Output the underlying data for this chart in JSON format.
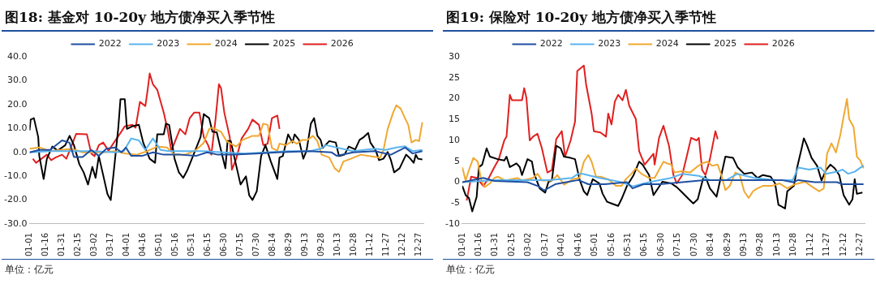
{
  "chart_data": [
    {
      "type": "line",
      "title": "图18: 基金对 10-20y 地方债净买入季节性",
      "annotations": [
        "单位：亿元"
      ],
      "legend": "top",
      "marker": "none",
      "line_style": "solid",
      "grid": false,
      "xlim": [
        "--01-01",
        "--12-31"
      ],
      "xticks": [
        {
          "value": "--01-01",
          "label": "01-01"
        },
        {
          "value": "--01-16",
          "label": "01-16"
        },
        {
          "value": "--01-31",
          "label": "01-31"
        },
        {
          "value": "--02-15",
          "label": "02-15"
        },
        {
          "value": "--03-02",
          "label": "03-02"
        },
        {
          "value": "--03-17",
          "label": "03-17"
        },
        {
          "value": "--04-01",
          "label": "04-01"
        },
        {
          "value": "--04-16",
          "label": "04-16"
        },
        {
          "value": "--05-01",
          "label": "05-01"
        },
        {
          "value": "--05-16",
          "label": "05-16"
        },
        {
          "value": "--05-31",
          "label": "05-31"
        },
        {
          "value": "--06-15",
          "label": "06-15"
        },
        {
          "value": "--06-30",
          "label": "06-30"
        },
        {
          "value": "--07-15",
          "label": "07-15"
        },
        {
          "value": "--07-30",
          "label": "07-30"
        },
        {
          "value": "--08-14",
          "label": "08-14"
        },
        {
          "value": "--08-29",
          "label": "08-29"
        },
        {
          "value": "--09-13",
          "label": "09-13"
        },
        {
          "value": "--09-28",
          "label": "09-28"
        },
        {
          "value": "--10-13",
          "label": "10-13"
        },
        {
          "value": "--10-28",
          "label": "10-28"
        },
        {
          "value": "--11-12",
          "label": "11-12"
        },
        {
          "value": "--11-27",
          "label": "11-27"
        },
        {
          "value": "--12-12",
          "label": "12-12"
        },
        {
          "value": "--12-27",
          "label": "12-27"
        }
      ],
      "ylim": [
        -30,
        40
      ],
      "yticks": [
        {
          "value": -30,
          "label": "-30.0"
        },
        {
          "value": -20,
          "label": "-20.0"
        },
        {
          "value": -10,
          "label": "-10.0"
        },
        {
          "value": 0,
          "label": "0.0"
        },
        {
          "value": 10,
          "label": "10.0"
        },
        {
          "value": 20,
          "label": "20.0"
        },
        {
          "value": 30,
          "label": "30.0"
        },
        {
          "value": 40,
          "label": "40.0"
        }
      ],
      "series": [
        {
          "name": "2022",
          "color": "#1f4fa0",
          "x": [
            "--01-01",
            "--01-10",
            "--01-20",
            "--01-31",
            "--02-07",
            "--02-11",
            "--02-19",
            "--02-27",
            "--03-06",
            "--03-13",
            "--03-21",
            "--03-27",
            "--03-31",
            "--04-05",
            "--04-15",
            "--04-25",
            "--05-05",
            "--05-20",
            "--06-04",
            "--06-14",
            "--06-24",
            "--07-09",
            "--07-29",
            "--08-18",
            "--09-17",
            "--10-07",
            "--10-12",
            "--10-27",
            "--11-16",
            "--12-01",
            "--12-14",
            "--12-21",
            "--12-30"
          ],
          "values": [
            0,
            1,
            1,
            5,
            4,
            -2,
            -2,
            1,
            -1.5,
            1.5,
            2,
            0,
            2,
            -1.5,
            -1.5,
            0,
            -1,
            -1,
            -1.5,
            0,
            -1,
            -1,
            -0.5,
            0,
            0.5,
            0,
            -1.5,
            0,
            0.5,
            -1,
            2,
            -0.5,
            0.5
          ]
        },
        {
          "name": "2023",
          "color": "#5ab4f0",
          "x": [
            "--01-01",
            "--01-20",
            "--02-09",
            "--03-01",
            "--03-21",
            "--03-29",
            "--04-05",
            "--04-12",
            "--04-18",
            "--04-25",
            "--05-02",
            "--05-10",
            "--06-09",
            "--06-29",
            "--07-19",
            "--08-08",
            "--08-28",
            "--09-17",
            "--09-27",
            "--10-02",
            "--10-27",
            "--11-16",
            "--11-26",
            "--12-06",
            "--12-14",
            "--12-21",
            "--12-30"
          ],
          "values": [
            0,
            0.5,
            0.5,
            0.5,
            0,
            0.5,
            5.8,
            5,
            1,
            5.8,
            1,
            0.5,
            0.5,
            0,
            -0.5,
            0,
            0.5,
            0.5,
            1.5,
            3,
            0.5,
            1.5,
            1,
            2,
            2.5,
            0.5,
            1
          ]
        },
        {
          "name": "2024",
          "color": "#f0a830",
          "x": [
            "--01-01",
            "--01-10",
            "--01-20",
            "--01-30",
            "--02-09",
            "--02-19",
            "--03-01",
            "--03-11",
            "--03-21",
            "--03-31",
            "--04-10",
            "--04-20",
            "--04-29",
            "--05-08",
            "--05-15",
            "--05-25",
            "--06-04",
            "--06-11",
            "--06-16",
            "--06-19",
            "--06-27",
            "--07-02",
            "--07-06",
            "--07-11",
            "--07-17",
            "--07-26",
            "--08-01",
            "--08-05",
            "--08-09",
            "--08-13",
            "--08-18",
            "--08-20",
            "--08-26",
            "--09-01",
            "--09-05",
            "--09-10",
            "--09-15",
            "--09-20",
            "--09-24",
            "--09-28",
            "--10-05",
            "--10-10",
            "--10-14",
            "--10-18",
            "--10-25",
            "--11-03",
            "--11-12",
            "--11-21",
            "--11-24",
            "--11-28",
            "--12-03",
            "--12-06",
            "--12-10",
            "--12-14",
            "--12-17",
            "--12-20",
            "--12-24",
            "--12-27",
            "--12-30"
          ],
          "values": [
            1.5,
            2,
            0.5,
            1,
            1.5,
            0,
            0,
            0,
            0.5,
            -0.5,
            -1,
            0.5,
            2.4,
            2,
            -1,
            -1,
            1,
            4,
            9.8,
            10.3,
            8.6,
            4.7,
            3.6,
            2.4,
            5.2,
            6.9,
            6.9,
            12,
            11.5,
            1.8,
            0.7,
            3.6,
            3,
            4.7,
            3.6,
            5.2,
            5.2,
            6.9,
            4.7,
            -1,
            -2.2,
            -6.7,
            -8.2,
            -3.9,
            -2.7,
            -1,
            -1.6,
            -2.2,
            0.7,
            9.8,
            16.6,
            19.7,
            18.3,
            14.3,
            11.5,
            4.1,
            5.2,
            4.7,
            12.6
          ]
        },
        {
          "name": "2025",
          "color": "#000000",
          "x": [
            "--01-01",
            "--01-02",
            "--01-05",
            "--01-09",
            "--01-10",
            "--01-14",
            "--01-17",
            "--01-22",
            "--01-27",
            "--02-03",
            "--02-07",
            "--02-11",
            "--02-16",
            "--02-20",
            "--02-24",
            "--02-28",
            "--03-03",
            "--03-06",
            "--03-10",
            "--03-14",
            "--03-17",
            "--03-20",
            "--03-24",
            "--03-26",
            "--03-30",
            "--04-01",
            "--04-06",
            "--04-12",
            "--04-16",
            "--04-22",
            "--04-27",
            "--04-29",
            "--05-05",
            "--05-07",
            "--05-10",
            "--05-15",
            "--05-19",
            "--05-23",
            "--05-27",
            "--06-02",
            "--06-08",
            "--06-11",
            "--06-16",
            "--06-19",
            "--06-23",
            "--06-27",
            "--07-01",
            "--07-03",
            "--07-06",
            "--07-09",
            "--07-15",
            "--07-20",
            "--07-23",
            "--07-26",
            "--07-30",
            "--08-03",
            "--08-07",
            "--08-12",
            "--08-18",
            "--08-20",
            "--08-23",
            "--08-28",
            "--09-01",
            "--09-03",
            "--09-07",
            "--09-11",
            "--09-14",
            "--09-18",
            "--09-21",
            "--09-24",
            "--09-27",
            "--09-29",
            "--10-05",
            "--10-11",
            "--10-14",
            "--10-19",
            "--10-23",
            "--10-29",
            "--11-02",
            "--11-06",
            "--11-10",
            "--11-12",
            "--11-17",
            "--11-20",
            "--11-24",
            "--11-28",
            "--12-01",
            "--12-04",
            "--12-09",
            "--12-15",
            "--12-18",
            "--12-22",
            "--12-24",
            "--12-26",
            "--12-30"
          ],
          "values": [
            9.2,
            13.7,
            14.3,
            6.4,
            -1.6,
            -11.2,
            -2.7,
            2.4,
            0.7,
            3,
            6.9,
            3,
            -5,
            -8.4,
            -13.5,
            -6.1,
            -10.7,
            -1.6,
            -9.5,
            -17.5,
            -20,
            -7.3,
            10.3,
            22.2,
            22.2,
            9.8,
            10.9,
            11.5,
            4.1,
            -2.7,
            -4.4,
            7.5,
            7.5,
            12,
            11.5,
            -2.7,
            -8.4,
            -10.7,
            -7.3,
            -0.5,
            6.4,
            16,
            14.3,
            8.6,
            8.4,
            0.7,
            -6.7,
            4.7,
            4.7,
            -1.6,
            -13.5,
            -10.1,
            -18,
            -20,
            -16.3,
            -1.6,
            3,
            -3.9,
            -11.2,
            -2.2,
            -1.6,
            7.5,
            4.1,
            7.5,
            5.2,
            -2.7,
            0.7,
            12,
            14.3,
            6.9,
            5.2,
            1.8,
            4.7,
            4.1,
            -1.6,
            -1,
            2.4,
            1.2,
            5.2,
            6.4,
            8.1,
            4.1,
            0.7,
            -3.3,
            -2.7,
            0.1,
            -3.3,
            -8.4,
            -6.7,
            -1,
            -2.2,
            -4.4,
            -1,
            -2.7,
            -3
          ]
        },
        {
          "name": "2026",
          "color": "#e02020",
          "x": [
            "--01-04",
            "--01-07",
            "--01-12",
            "--01-17",
            "--01-21",
            "--01-25",
            "--01-31",
            "--02-04",
            "--02-08",
            "--02-13",
            "--02-23",
            "--02-27",
            "--03-02",
            "--03-06",
            "--03-10",
            "--03-15",
            "--03-20",
            "--03-26",
            "--03-30",
            "--04-06",
            "--04-09",
            "--04-13",
            "--04-18",
            "--04-20",
            "--04-22",
            "--04-25",
            "--04-29",
            "--05-05",
            "--05-09",
            "--05-12",
            "--05-16",
            "--05-20",
            "--05-25",
            "--05-29",
            "--06-02",
            "--06-07",
            "--06-11",
            "--06-15",
            "--06-18",
            "--06-22",
            "--06-25",
            "--06-27",
            "--06-30",
            "--07-05",
            "--07-07",
            "--07-11",
            "--07-16",
            "--07-22",
            "--07-26",
            "--08-01",
            "--08-05",
            "--08-09",
            "--08-13",
            "--08-18",
            "--08-20"
          ],
          "values": [
            -2.7,
            -4.4,
            -2.7,
            -1,
            -3.3,
            -2.2,
            -1,
            -2.7,
            1.8,
            7.7,
            7.5,
            -0.5,
            -1.6,
            3,
            4.1,
            0.7,
            4.1,
            8.1,
            10.9,
            11.5,
            10.3,
            21.1,
            19.4,
            25.7,
            33,
            28.5,
            26.2,
            16.6,
            8.6,
            0.7,
            5.2,
            9.8,
            7.5,
            14.3,
            16.6,
            16.6,
            6.4,
            3,
            -1,
            14.3,
            28.5,
            26.8,
            16.6,
            6.4,
            -7.3,
            -2.7,
            5.8,
            9.8,
            13.7,
            11.5,
            3,
            3.6,
            14.3,
            15.4,
            9.8
          ]
        }
      ]
    },
    {
      "type": "line",
      "title": "图19: 保险对 10-20y 地方债净买入季节性",
      "annotations": [
        "单位：亿元"
      ],
      "legend": "top",
      "marker": "none",
      "line_style": "solid",
      "grid": false,
      "xlim": [
        "--01-01",
        "--12-31"
      ],
      "xticks": [
        {
          "value": "--01-01",
          "label": "01-01"
        },
        {
          "value": "--01-16",
          "label": "01-16"
        },
        {
          "value": "--01-31",
          "label": "01-31"
        },
        {
          "value": "--02-15",
          "label": "02-15"
        },
        {
          "value": "--03-02",
          "label": "03-02"
        },
        {
          "value": "--03-17",
          "label": "03-17"
        },
        {
          "value": "--04-01",
          "label": "04-01"
        },
        {
          "value": "--04-16",
          "label": "04-16"
        },
        {
          "value": "--05-01",
          "label": "05-01"
        },
        {
          "value": "--05-16",
          "label": "05-16"
        },
        {
          "value": "--05-31",
          "label": "05-31"
        },
        {
          "value": "--06-15",
          "label": "06-15"
        },
        {
          "value": "--06-30",
          "label": "06-30"
        },
        {
          "value": "--07-15",
          "label": "07-15"
        },
        {
          "value": "--07-30",
          "label": "07-30"
        },
        {
          "value": "--08-14",
          "label": "08-14"
        },
        {
          "value": "--08-29",
          "label": "08-29"
        },
        {
          "value": "--09-13",
          "label": "09-13"
        },
        {
          "value": "--09-28",
          "label": "09-28"
        },
        {
          "value": "--10-13",
          "label": "10-13"
        },
        {
          "value": "--10-28",
          "label": "10-28"
        },
        {
          "value": "--11-12",
          "label": "11-12"
        },
        {
          "value": "--11-27",
          "label": "11-27"
        },
        {
          "value": "--12-12",
          "label": "12-12"
        },
        {
          "value": "--12-27",
          "label": "12-27"
        }
      ],
      "ylim": [
        -10,
        30
      ],
      "yticks": [
        -10,
        -5,
        0,
        5,
        10,
        15,
        20,
        25,
        30
      ],
      "series": [
        {
          "name": "2022",
          "color": "#1f4fa0",
          "x": [
            "--01-01",
            "--01-20",
            "--01-30",
            "--03-01",
            "--03-11",
            "--03-16",
            "--03-26",
            "--04-05",
            "--04-16",
            "--04-25",
            "--05-10",
            "--05-30",
            "--06-04",
            "--06-14",
            "--06-29",
            "--07-19",
            "--08-08",
            "--08-28",
            "--09-17",
            "--10-17",
            "--10-27",
            "--11-01",
            "--11-16",
            "--12-06",
            "--12-11",
            "--12-30"
          ],
          "values": [
            0,
            1,
            0.3,
            0,
            -1,
            -2,
            -0.5,
            0,
            0.5,
            -0.5,
            -0.5,
            0,
            -1.5,
            -0.5,
            -0.5,
            0,
            0.5,
            0.5,
            0.5,
            0.5,
            0,
            0.5,
            0,
            0,
            -0.5,
            -0.5
          ]
        },
        {
          "name": "2023",
          "color": "#5ab4f0",
          "x": [
            "--01-01",
            "--01-30",
            "--03-01",
            "--03-21",
            "--04-10",
            "--04-16",
            "--04-20",
            "--05-05",
            "--05-25",
            "--06-04",
            "--06-19",
            "--07-09",
            "--07-19",
            "--08-03",
            "--08-13",
            "--08-28",
            "--09-07",
            "--09-22",
            "--10-12",
            "--10-27",
            "--11-01",
            "--11-11",
            "--11-21",
            "--11-26",
            "--12-06",
            "--12-11",
            "--12-16",
            "--12-22",
            "--12-30"
          ],
          "values": [
            0,
            0.5,
            0.5,
            0.5,
            1,
            2,
            2,
            1,
            0,
            -1,
            0,
            1,
            2,
            1.5,
            0.5,
            0.5,
            2,
            1,
            0.5,
            0.5,
            3.5,
            3,
            3.5,
            2,
            2.5,
            3,
            2,
            2.5,
            4
          ]
        },
        {
          "name": "2024",
          "color": "#f0a830",
          "x": [
            "--01-01",
            "--01-04",
            "--01-07",
            "--01-11",
            "--01-15",
            "--01-18",
            "--01-21",
            "--01-26",
            "--01-30",
            "--02-02",
            "--02-09",
            "--02-20",
            "--02-24",
            "--03-06",
            "--03-10",
            "--03-14",
            "--03-23",
            "--03-28",
            "--04-03",
            "--04-11",
            "--04-17",
            "--04-21",
            "--04-25",
            "--04-28",
            "--05-02",
            "--05-06",
            "--05-13",
            "--05-20",
            "--05-25",
            "--05-29",
            "--06-03",
            "--06-07",
            "--06-12",
            "--06-19",
            "--06-24",
            "--07-02",
            "--07-05",
            "--07-09",
            "--07-12",
            "--07-18",
            "--07-26",
            "--08-01",
            "--08-06",
            "--08-11",
            "--08-15",
            "--08-20",
            "--08-23",
            "--08-27",
            "--08-31",
            "--09-05",
            "--09-09",
            "--09-13",
            "--09-17",
            "--09-21",
            "--09-25",
            "--09-30",
            "--10-08",
            "--10-15",
            "--10-22",
            "--10-28",
            "--11-07",
            "--11-14",
            "--11-20",
            "--11-24",
            "--11-27",
            "--12-01",
            "--12-05",
            "--12-09",
            "--12-12",
            "--12-15",
            "--12-17",
            "--12-21",
            "--12-24",
            "--12-27",
            "--12-30"
          ],
          "values": [
            3.6,
            0.4,
            2.9,
            5.8,
            4.9,
            0.7,
            -1.2,
            -0.3,
            1,
            1.3,
            0.4,
            1,
            0.4,
            1,
            2,
            0.4,
            0.4,
            1.7,
            -0.6,
            0.7,
            1,
            4.9,
            6.5,
            4.9,
            1.3,
            1.3,
            0.7,
            -0.9,
            -0.9,
            0.7,
            2,
            3.3,
            2,
            1,
            1,
            4.9,
            4.5,
            4.2,
            2.3,
            2.6,
            2.3,
            3.6,
            4.5,
            4.9,
            3.9,
            4.2,
            2,
            -1.9,
            -0.9,
            2.3,
            1.7,
            -2.2,
            -3.8,
            -2.2,
            -1.5,
            -0.9,
            -0.9,
            -0.3,
            -1.5,
            -0.6,
            0.1,
            -1.2,
            -2.2,
            -1.5,
            6.8,
            9.3,
            7.1,
            11.3,
            15.7,
            19.9,
            15.1,
            13.2,
            6.1,
            5.2,
            3.3
          ]
        },
        {
          "name": "2025",
          "color": "#000000",
          "x": [
            "--01-01",
            "--01-04",
            "--01-07",
            "--01-10",
            "--01-14",
            "--01-16",
            "--01-19",
            "--01-23",
            "--01-26",
            "--02-02",
            "--02-08",
            "--02-10",
            "--02-13",
            "--02-19",
            "--02-22",
            "--02-24",
            "--03-01",
            "--03-05",
            "--03-07",
            "--03-12",
            "--03-17",
            "--03-20",
            "--03-23",
            "--03-27",
            "--03-31",
            "--04-03",
            "--04-09",
            "--04-13",
            "--04-17",
            "--04-21",
            "--04-24",
            "--04-29",
            "--05-05",
            "--05-08",
            "--05-12",
            "--05-16",
            "--05-22",
            "--05-25",
            "--05-30",
            "--06-05",
            "--06-10",
            "--06-13",
            "--06-19",
            "--06-23",
            "--06-27",
            "--07-01",
            "--07-09",
            "--07-14",
            "--07-19",
            "--07-25",
            "--07-29",
            "--08-02",
            "--08-07",
            "--08-09",
            "--08-13",
            "--08-19",
            "--08-27",
            "--09-03",
            "--09-07",
            "--09-13",
            "--09-20",
            "--09-25",
            "--09-30",
            "--10-07",
            "--10-11",
            "--10-14",
            "--10-20",
            "--10-22",
            "--10-28",
            "--10-31",
            "--11-04",
            "--11-06",
            "--11-09",
            "--11-13",
            "--11-18",
            "--11-22",
            "--11-26",
            "--11-30",
            "--12-04",
            "--12-08",
            "--12-12",
            "--12-17",
            "--12-20",
            "--12-22",
            "--12-24",
            "--12-29"
          ],
          "values": [
            -0.9,
            -3.1,
            -3.8,
            -7,
            -3.5,
            3.6,
            4.2,
            8.1,
            6.1,
            5.5,
            5.2,
            6.1,
            3.6,
            4.5,
            3.6,
            1.7,
            5.5,
            4.9,
            2,
            -1.5,
            -2.5,
            0.1,
            0.4,
            8.7,
            8.1,
            6.1,
            5.8,
            5.5,
            0.7,
            -2.2,
            -3.1,
            0.7,
            -0.3,
            -2.8,
            -4.7,
            -5.1,
            -5.7,
            -4.1,
            -0.9,
            1.7,
            4.9,
            4.2,
            1.7,
            -3.1,
            -1.5,
            0.1,
            -0.3,
            -1.2,
            -2.5,
            -4.1,
            -5.1,
            -4.1,
            1,
            1.3,
            -1.5,
            -3.5,
            6.1,
            5.8,
            3.6,
            2,
            2.3,
            1,
            1.7,
            1.3,
            -0.3,
            -5.4,
            -6.3,
            -2.2,
            -0.9,
            3.6,
            8.1,
            10.5,
            8.7,
            5.8,
            3.9,
            0.4,
            2.9,
            4.2,
            3.3,
            1.7,
            -3.1,
            -5.4,
            -4.1,
            0.7,
            -2.8,
            -2.5
          ]
        },
        {
          "name": "2026",
          "color": "#e02020",
          "x": [
            "--01-05",
            "--01-09",
            "--01-14",
            "--01-20",
            "--01-25",
            "--01-30",
            "--02-03",
            "--02-08",
            "--02-10",
            "--02-13",
            "--02-15",
            "--02-24",
            "--02-26",
            "--02-28",
            "--03-03",
            "--03-06",
            "--03-10",
            "--03-14",
            "--03-19",
            "--03-23",
            "--03-27",
            "--04-01",
            "--04-04",
            "--04-09",
            "--04-13",
            "--04-15",
            "--04-21",
            "--04-23",
            "--04-28",
            "--04-30",
            "--05-06",
            "--05-11",
            "--05-13",
            "--05-16",
            "--05-19",
            "--05-22",
            "--05-26",
            "--05-29",
            "--06-01",
            "--06-07",
            "--06-10",
            "--06-15",
            "--06-23",
            "--06-24",
            "--06-28",
            "--07-02",
            "--07-07",
            "--07-11",
            "--07-14",
            "--07-19",
            "--07-23",
            "--07-27",
            "--08-01",
            "--08-03",
            "--08-06",
            "--08-09",
            "--08-13",
            "--08-18",
            "--08-20"
          ],
          "values": [
            -4.4,
            1.3,
            1,
            -0.9,
            1,
            3.6,
            5.5,
            10,
            10.9,
            20.9,
            19.6,
            19.6,
            22.5,
            20.2,
            10,
            10.9,
            11.6,
            8.1,
            2.3,
            2.9,
            10.3,
            12.2,
            6.1,
            10,
            14.5,
            26.6,
            27.9,
            23.4,
            16.4,
            12.2,
            11.9,
            10.9,
            16.4,
            13.8,
            19.3,
            20.9,
            19.6,
            22.1,
            18.3,
            15.1,
            7.4,
            4.2,
            6.8,
            4.2,
            10.6,
            13.5,
            8.7,
            1.7,
            -0.3,
            1.7,
            6.1,
            10.6,
            10,
            10.6,
            2.9,
            1.7,
            5.5,
            12.2,
            10.3
          ]
        }
      ]
    }
  ]
}
